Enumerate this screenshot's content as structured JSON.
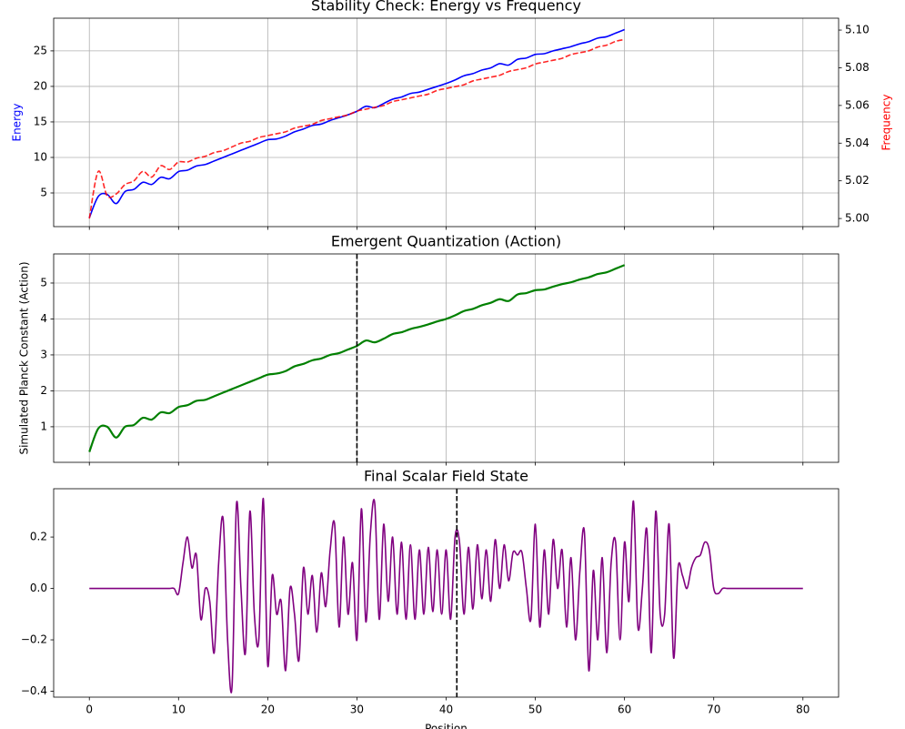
{
  "chart_data": [
    {
      "type": "line",
      "title": "Stability Check: Energy vs Frequency",
      "ylabel": "Energy",
      "ylabel_color": "blue",
      "y2label": "Frequency",
      "y2label_color": "red",
      "grid": true,
      "xticklabels": false,
      "xlim": [
        -4,
        84
      ],
      "xticks": [
        0,
        10,
        20,
        30,
        40,
        50,
        60,
        70,
        80
      ],
      "ylim": [
        0.26,
        29.6
      ],
      "yticks": [
        5,
        10,
        15,
        20,
        25
      ],
      "y2lim": [
        4.9957,
        5.1063
      ],
      "y2ticks": [
        {
          "value": 5,
          "label": "5.00"
        },
        5.02,
        5.04,
        5.06,
        5.08,
        {
          "value": 5.1,
          "label": "5.10"
        }
      ],
      "x": [
        0,
        1,
        2,
        3,
        4,
        5,
        6,
        7,
        8,
        9,
        10,
        11,
        12,
        13,
        14,
        15,
        16,
        17,
        18,
        19,
        20,
        21,
        22,
        23,
        24,
        25,
        26,
        27,
        28,
        29,
        30,
        31,
        32,
        33,
        34,
        35,
        36,
        37,
        38,
        39,
        40,
        41,
        42,
        43,
        44,
        45,
        46,
        47,
        48,
        49,
        50,
        51,
        52,
        53,
        54,
        55,
        56,
        57,
        58,
        59,
        60
      ],
      "series": [
        {
          "color": "blue",
          "values": [
            1.5,
            4.5,
            4.8,
            3.5,
            5.2,
            5.5,
            6.5,
            6.2,
            7.2,
            7.0,
            8.0,
            8.2,
            8.8,
            9.0,
            9.5,
            10.0,
            10.5,
            11.0,
            11.5,
            12.0,
            12.5,
            12.6,
            13.0,
            13.6,
            14.0,
            14.5,
            14.7,
            15.2,
            15.6,
            16.0,
            16.5,
            17.2,
            17.0,
            17.6,
            18.2,
            18.5,
            19.0,
            19.2,
            19.6,
            20.0,
            20.4,
            20.9,
            21.5,
            21.8,
            22.3,
            22.6,
            23.2,
            23.0,
            23.8,
            24.0,
            24.5,
            24.6,
            25.0,
            25.3,
            25.6,
            26.0,
            26.3,
            26.8,
            27.0,
            27.5,
            28.0
          ]
        },
        {
          "color": "red",
          "dashed": true,
          "axis": "y2",
          "values": [
            5.0,
            5.025,
            5.012,
            5.013,
            5.018,
            5.02,
            5.025,
            5.022,
            5.028,
            5.026,
            5.03,
            5.03,
            5.032,
            5.033,
            5.035,
            5.036,
            5.038,
            5.04,
            5.041,
            5.043,
            5.044,
            5.045,
            5.046,
            5.048,
            5.049,
            5.05,
            5.052,
            5.053,
            5.054,
            5.055,
            5.057,
            5.058,
            5.059,
            5.06,
            5.062,
            5.063,
            5.064,
            5.065,
            5.066,
            5.068,
            5.069,
            5.07,
            5.071,
            5.073,
            5.074,
            5.075,
            5.076,
            5.078,
            5.079,
            5.08,
            5.082,
            5.083,
            5.084,
            5.085,
            5.087,
            5.088,
            5.089,
            5.091,
            5.092,
            5.094,
            5.095
          ]
        }
      ]
    },
    {
      "type": "line",
      "title": "Emergent Quantization (Action)",
      "ylabel": "Simulated Planck Constant (Action)",
      "grid": true,
      "xticklabels": false,
      "vline": 30,
      "xlim": [
        -4,
        84
      ],
      "xticks": [
        0,
        10,
        20,
        30,
        40,
        50,
        60,
        70,
        80
      ],
      "ylim": [
        0.01,
        5.81
      ],
      "yticks": [
        1,
        2,
        3,
        4,
        5
      ],
      "x": [
        0,
        1,
        2,
        3,
        4,
        5,
        6,
        7,
        8,
        9,
        10,
        11,
        12,
        13,
        14,
        15,
        16,
        17,
        18,
        19,
        20,
        21,
        22,
        23,
        24,
        25,
        26,
        27,
        28,
        29,
        30,
        31,
        32,
        33,
        34,
        35,
        36,
        37,
        38,
        39,
        40,
        41,
        42,
        43,
        44,
        45,
        46,
        47,
        48,
        49,
        50,
        51,
        52,
        53,
        54,
        55,
        56,
        57,
        58,
        59,
        60
      ],
      "series": [
        {
          "color": "green",
          "values": [
            0.3,
            0.95,
            1.0,
            0.7,
            1.0,
            1.05,
            1.25,
            1.2,
            1.4,
            1.38,
            1.55,
            1.6,
            1.72,
            1.75,
            1.85,
            1.95,
            2.05,
            2.15,
            2.25,
            2.35,
            2.45,
            2.48,
            2.55,
            2.68,
            2.75,
            2.85,
            2.9,
            3.0,
            3.05,
            3.15,
            3.25,
            3.4,
            3.35,
            3.45,
            3.58,
            3.63,
            3.72,
            3.78,
            3.85,
            3.93,
            4.0,
            4.1,
            4.22,
            4.28,
            4.38,
            4.45,
            4.55,
            4.5,
            4.68,
            4.72,
            4.8,
            4.82,
            4.9,
            4.97,
            5.02,
            5.1,
            5.16,
            5.25,
            5.3,
            5.4,
            5.5
          ]
        }
      ]
    },
    {
      "type": "line",
      "title": "Final Scalar Field State",
      "xlabel": "Position",
      "grid": false,
      "xticklabels": true,
      "vline": 41.2,
      "xlim": [
        -4,
        84
      ],
      "xticks": [
        0,
        10,
        20,
        30,
        40,
        50,
        60,
        70,
        80
      ],
      "ylim": [
        -0.423,
        0.388
      ],
      "yticks": [
        {
          "value": -0.4,
          "label": "−0.4"
        },
        {
          "value": -0.2,
          "label": "−0.2"
        },
        {
          "value": 0,
          "label": "0.0"
        },
        0.2
      ],
      "x": [
        0,
        0.5,
        1,
        1.5,
        2,
        2.5,
        3,
        3.5,
        4,
        4.5,
        5,
        5.5,
        6,
        6.5,
        7,
        7.5,
        8,
        8.5,
        9,
        9.5,
        10,
        10.5,
        11,
        11.5,
        12,
        12.5,
        13,
        13.5,
        14,
        14.5,
        15,
        15.5,
        16,
        16.5,
        17,
        17.5,
        18,
        18.5,
        19,
        19.5,
        20,
        20.5,
        21,
        21.5,
        22,
        22.5,
        23,
        23.5,
        24,
        24.5,
        25,
        25.5,
        26,
        26.5,
        27,
        27.5,
        28,
        28.5,
        29,
        29.5,
        30,
        30.5,
        31,
        31.5,
        32,
        32.5,
        33,
        33.5,
        34,
        34.5,
        35,
        35.5,
        36,
        36.5,
        37,
        37.5,
        38,
        38.5,
        39,
        39.5,
        40,
        40.5,
        41,
        41.5,
        42,
        42.5,
        43,
        43.5,
        44,
        44.5,
        45,
        45.5,
        46,
        46.5,
        47,
        47.5,
        48,
        48.5,
        49,
        49.5,
        50,
        50.5,
        51,
        51.5,
        52,
        52.5,
        53,
        53.5,
        54,
        54.5,
        55,
        55.5,
        56,
        56.5,
        57,
        57.5,
        58,
        58.5,
        59,
        59.5,
        60,
        60.5,
        61,
        61.5,
        62,
        62.5,
        63,
        63.5,
        64,
        64.5,
        65,
        65.5,
        66,
        66.5,
        67,
        67.5,
        68,
        68.5,
        69,
        69.5,
        70,
        70.5,
        71,
        71.5,
        72,
        72.5,
        73,
        73.5,
        74,
        74.5,
        75,
        75.5,
        76,
        76.5,
        77,
        77.5,
        78,
        78.5,
        79,
        79.5,
        80
      ],
      "series": [
        {
          "color": "purple",
          "values": [
            0,
            0,
            0,
            0,
            0,
            0,
            0,
            0,
            0,
            0,
            0,
            0,
            0,
            0,
            0,
            0,
            0,
            0,
            0,
            0,
            -0.02,
            0.1,
            0.2,
            0.08,
            0.13,
            -0.12,
            0.0,
            -0.05,
            -0.25,
            0.1,
            0.27,
            -0.2,
            -0.38,
            0.33,
            0.0,
            -0.25,
            0.3,
            -0.1,
            -0.2,
            0.35,
            -0.3,
            0.05,
            -0.1,
            -0.05,
            -0.32,
            0.0,
            -0.1,
            -0.28,
            0.08,
            -0.1,
            0.05,
            -0.17,
            0.06,
            -0.07,
            0.15,
            0.25,
            -0.15,
            0.2,
            -0.1,
            0.1,
            -0.2,
            0.31,
            -0.13,
            0.21,
            0.33,
            -0.12,
            0.25,
            -0.05,
            0.2,
            -0.1,
            0.18,
            -0.12,
            0.17,
            -0.12,
            0.15,
            -0.1,
            0.16,
            -0.09,
            0.15,
            -0.1,
            0.15,
            -0.12,
            0.2,
            0.18,
            -0.1,
            0.16,
            -0.08,
            0.17,
            -0.04,
            0.15,
            -0.05,
            0.19,
            0.0,
            0.17,
            0.03,
            0.14,
            0.13,
            0.14,
            0.0,
            -0.12,
            0.25,
            -0.15,
            0.15,
            -0.1,
            0.19,
            0.0,
            0.15,
            -0.15,
            0.12,
            -0.2,
            0.07,
            0.22,
            -0.32,
            0.07,
            -0.2,
            0.12,
            -0.25,
            0.1,
            0.18,
            -0.2,
            0.18,
            -0.05,
            0.34,
            -0.15,
            0.0,
            0.23,
            -0.25,
            0.3,
            -0.1,
            -0.1,
            0.25,
            -0.27,
            0.08,
            0.05,
            0.0,
            0.08,
            0.12,
            0.13,
            0.18,
            0.15,
            0.0,
            -0.02,
            0,
            0,
            0,
            0,
            0,
            0,
            0,
            0,
            0,
            0,
            0,
            0,
            0,
            0,
            0,
            0,
            0,
            0,
            0
          ]
        }
      ]
    }
  ]
}
